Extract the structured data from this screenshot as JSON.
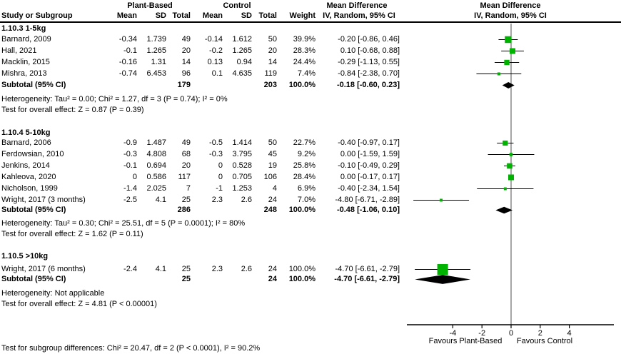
{
  "figure": {
    "columns": {
      "group1": "Plant-Based",
      "group2": "Control",
      "study": "Study or Subgroup",
      "mean": "Mean",
      "sd": "SD",
      "total": "Total",
      "weight": "Weight",
      "effect": "Mean Difference",
      "method": "IV, Random, 95% CI"
    }
  },
  "chart_data": {
    "type": "scatter",
    "title": "Mean Difference",
    "method": "IV, Random, 95% CI",
    "xlim": [
      -7.2,
      7.1
    ],
    "axis": {
      "ticks": [
        -4,
        -2,
        0,
        2,
        4
      ],
      "favours_left": "Favours Plant-Based",
      "favours_right": "Favours Control"
    },
    "sections": [
      {
        "label": "1.10.3 1-5kg",
        "studies": [
          {
            "study": "Barnard, 2009",
            "mean1": "-0.34",
            "sd1": "1.739",
            "total1": "49",
            "mean2": "-0.14",
            "sd2": "1.612",
            "total2": "50",
            "weight": "39.9%",
            "weight_pct": 39.9,
            "ci_text": "-0.20 [-0.86, 0.46]",
            "est": -0.2,
            "lo": -0.86,
            "hi": 0.46
          },
          {
            "study": "Hall, 2021",
            "mean1": "-0.1",
            "sd1": "1.265",
            "total1": "20",
            "mean2": "-0.2",
            "sd2": "1.265",
            "total2": "20",
            "weight": "28.3%",
            "weight_pct": 28.3,
            "ci_text": "0.10 [-0.68, 0.88]",
            "est": 0.1,
            "lo": -0.68,
            "hi": 0.88
          },
          {
            "study": "Macklin, 2015",
            "mean1": "-0.16",
            "sd1": "1.31",
            "total1": "14",
            "mean2": "0.13",
            "sd2": "0.94",
            "total2": "14",
            "weight": "24.4%",
            "weight_pct": 24.4,
            "ci_text": "-0.29 [-1.13, 0.55]",
            "est": -0.29,
            "lo": -1.13,
            "hi": 0.55
          },
          {
            "study": "Mishra, 2013",
            "mean1": "-0.74",
            "sd1": "6.453",
            "total1": "96",
            "mean2": "0.1",
            "sd2": "4.635",
            "total2": "119",
            "weight": "7.4%",
            "weight_pct": 7.4,
            "ci_text": "-0.84 [-2.38, 0.70]",
            "est": -0.84,
            "lo": -2.38,
            "hi": 0.7
          }
        ],
        "subtotal": {
          "label": "Subtotal (95% CI)",
          "total1": "179",
          "total2": "203",
          "weight": "100.0%",
          "ci_text": "-0.18 [-0.60, 0.23]",
          "est": -0.18,
          "lo": -0.6,
          "hi": 0.23
        },
        "heterogeneity": "Heterogeneity: Tau² = 0.00; Chi² = 1.27, df = 3 (P = 0.74); I² = 0%",
        "overall_effect": "Test for overall effect: Z = 0.87 (P = 0.39)"
      },
      {
        "label": "1.10.4 5-10kg",
        "studies": [
          {
            "study": "Barnard, 2006",
            "mean1": "-0.9",
            "sd1": "1.487",
            "total1": "49",
            "mean2": "-0.5",
            "sd2": "1.414",
            "total2": "50",
            "weight": "22.7%",
            "weight_pct": 22.7,
            "ci_text": "-0.40 [-0.97, 0.17]",
            "est": -0.4,
            "lo": -0.97,
            "hi": 0.17
          },
          {
            "study": "Ferdowsian, 2010",
            "mean1": "-0.3",
            "sd1": "4.808",
            "total1": "68",
            "mean2": "-0.3",
            "sd2": "3.795",
            "total2": "45",
            "weight": "9.2%",
            "weight_pct": 9.2,
            "ci_text": "0.00 [-1.59, 1.59]",
            "est": 0.0,
            "lo": -1.59,
            "hi": 1.59
          },
          {
            "study": "Jenkins, 2014",
            "mean1": "-0.1",
            "sd1": "0.694",
            "total1": "20",
            "mean2": "0",
            "sd2": "0.528",
            "total2": "19",
            "weight": "25.8%",
            "weight_pct": 25.8,
            "ci_text": "-0.10 [-0.49, 0.29]",
            "est": -0.1,
            "lo": -0.49,
            "hi": 0.29
          },
          {
            "study": "Kahleova, 2020",
            "mean1": "0",
            "sd1": "0.586",
            "total1": "117",
            "mean2": "0",
            "sd2": "0.705",
            "total2": "106",
            "weight": "28.4%",
            "weight_pct": 28.4,
            "ci_text": "0.00 [-0.17, 0.17]",
            "est": 0.0,
            "lo": -0.17,
            "hi": 0.17
          },
          {
            "study": "Nicholson, 1999",
            "mean1": "-1.4",
            "sd1": "2.025",
            "total1": "7",
            "mean2": "-1",
            "sd2": "1.253",
            "total2": "4",
            "weight": "6.9%",
            "weight_pct": 6.9,
            "ci_text": "-0.40 [-2.34, 1.54]",
            "est": -0.4,
            "lo": -2.34,
            "hi": 1.54
          },
          {
            "study": "Wright, 2017 (3 months)",
            "mean1": "-2.5",
            "sd1": "4.1",
            "total1": "25",
            "mean2": "2.3",
            "sd2": "2.6",
            "total2": "24",
            "weight": "7.0%",
            "weight_pct": 7.0,
            "ci_text": "-4.80 [-6.71, -2.89]",
            "est": -4.8,
            "lo": -6.71,
            "hi": -2.89
          }
        ],
        "subtotal": {
          "label": "Subtotal (95% CI)",
          "total1": "286",
          "total2": "248",
          "weight": "100.0%",
          "ci_text": "-0.48 [-1.06, 0.10]",
          "est": -0.48,
          "lo": -1.06,
          "hi": 0.1
        },
        "heterogeneity": "Heterogeneity: Tau² = 0.30; Chi² = 25.51, df = 5 (P = 0.0001); I² = 80%",
        "overall_effect": "Test for overall effect: Z = 1.62 (P = 0.11)"
      },
      {
        "label": "1.10.5 >10kg",
        "studies": [
          {
            "study": "Wright, 2017 (6 months)",
            "mean1": "-2.4",
            "sd1": "4.1",
            "total1": "25",
            "mean2": "2.3",
            "sd2": "2.6",
            "total2": "24",
            "weight": "100.0%",
            "weight_pct": 100.0,
            "ci_text": "-4.70 [-6.61, -2.79]",
            "est": -4.7,
            "lo": -6.61,
            "hi": -2.79
          }
        ],
        "subtotal": {
          "label": "Subtotal (95% CI)",
          "total1": "25",
          "total2": "24",
          "weight": "100.0%",
          "ci_text": "-4.70 [-6.61, -2.79]",
          "est": -4.7,
          "lo": -6.61,
          "hi": -2.79
        },
        "heterogeneity": "Heterogeneity: Not applicable",
        "overall_effect": "Test for overall effect: Z = 4.81 (P < 0.00001)"
      }
    ],
    "footer": "Test for subgroup differences: Chi² = 20.47, df = 2 (P < 0.0001), I² = 90.2%"
  },
  "colors": {
    "square_green": "#00b300",
    "diamond_black": "#000000",
    "ci_line": "#000000",
    "zero_line": "#4d4d4d",
    "axis": "#000000"
  }
}
